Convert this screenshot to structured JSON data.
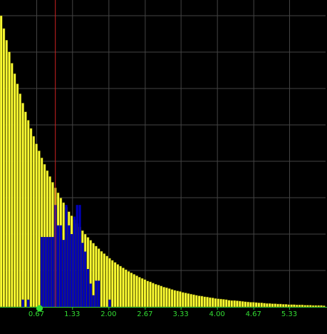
{
  "chart_data": {
    "type": "bar",
    "title": "",
    "xlabel": "",
    "ylabel": "",
    "xlim": [
      0,
      6.0
    ],
    "ylim": [
      0,
      100
    ],
    "grid": true,
    "legend": "none",
    "x_tick_labels": [
      "0.67",
      "1.33",
      "2.00",
      "2.67",
      "3.33",
      "4.00",
      "4.67",
      "5.33"
    ],
    "x_ticks": [
      0.67,
      1.33,
      2.0,
      2.67,
      3.33,
      4.0,
      4.67,
      5.33
    ],
    "bin_width": 0.05,
    "series": [
      {
        "color": "#ffff33",
        "values": [
          100.0,
          95.6,
          91.6,
          87.6,
          83.7,
          80.1,
          76.6,
          73.2,
          70.0,
          67.0,
          64.1,
          61.3,
          58.6,
          56.0,
          53.6,
          51.2,
          49.0,
          46.8,
          44.8,
          42.8,
          40.9,
          39.2,
          37.4,
          35.8,
          34.2,
          32.7,
          31.3,
          29.9,
          28.6,
          27.4,
          26.2,
          25.0,
          23.9,
          22.9,
          21.9,
          20.9,
          20.0,
          19.1,
          18.3,
          17.5,
          16.7,
          16.0,
          15.3,
          14.6,
          14.0,
          13.4,
          12.8,
          12.2,
          11.7,
          11.2,
          10.7,
          10.2,
          9.8,
          9.4,
          8.9,
          8.6,
          8.2,
          7.8,
          7.5,
          7.2,
          6.8,
          6.6,
          6.3,
          6.0,
          5.7,
          5.5,
          5.3,
          5.0,
          4.8,
          4.6,
          4.4,
          4.2,
          4.0,
          3.8,
          3.7,
          3.5,
          3.4,
          3.2,
          3.1,
          2.9,
          2.8,
          2.7,
          2.6,
          2.5,
          2.3,
          2.2,
          2.2,
          2.1,
          2.0,
          1.9,
          1.8,
          1.7,
          1.6,
          1.6,
          1.5,
          1.4,
          1.4,
          1.3,
          1.2,
          1.2,
          1.1,
          1.1,
          1.0,
          1.0,
          0.9,
          0.9,
          0.8,
          0.8,
          0.8,
          0.7,
          0.7,
          0.7,
          0.6,
          0.6,
          0.6,
          0.5,
          0.5,
          0.5,
          0.5,
          0.4
        ]
      },
      {
        "color": "#0000bb",
        "values": [
          0,
          0,
          0,
          0,
          0,
          0,
          0,
          0,
          2.5,
          0,
          2.5,
          0,
          0,
          0,
          0,
          24,
          24,
          24,
          24,
          24,
          35,
          28,
          28,
          23,
          35,
          28,
          25,
          31,
          35,
          35,
          22,
          19,
          13,
          8,
          4,
          9,
          9,
          0,
          0,
          0,
          2.5
        ]
      }
    ],
    "reference_line": {
      "x": 1.02,
      "color": "#cc2222"
    },
    "marker": {
      "x": 0.73,
      "color": "#33dd33"
    }
  }
}
